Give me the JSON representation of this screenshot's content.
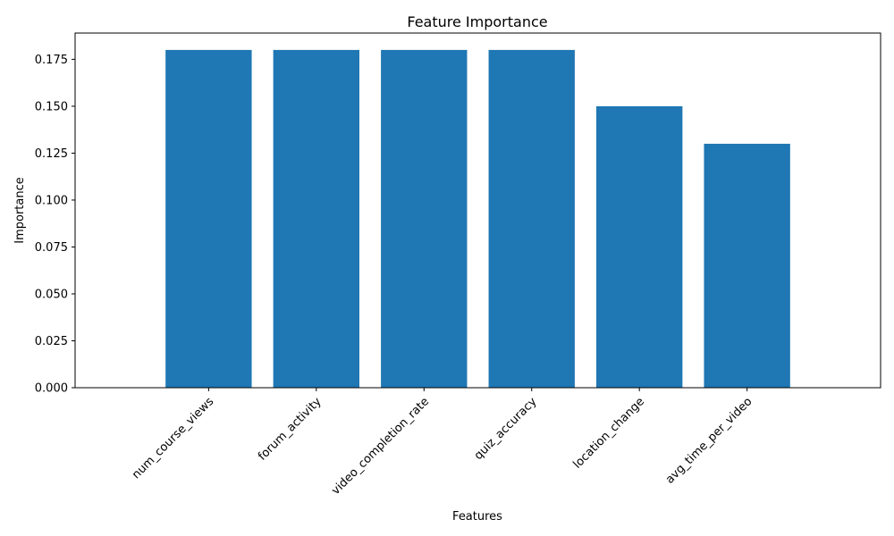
{
  "chart_data": {
    "type": "bar",
    "title": "Feature Importance",
    "xlabel": "Features",
    "ylabel": "Importance",
    "categories": [
      "num_course_views",
      "forum_activity",
      "video_completion_rate",
      "quiz_accuracy",
      "location_change",
      "avg_time_per_video"
    ],
    "values": [
      0.18,
      0.18,
      0.18,
      0.18,
      0.15,
      0.13
    ],
    "ylim": [
      0,
      0.189
    ],
    "yticks": [
      "0.000",
      "0.025",
      "0.050",
      "0.075",
      "0.100",
      "0.125",
      "0.150",
      "0.175"
    ],
    "bar_color": "#1f77b4",
    "grid": false,
    "legend": "none"
  }
}
